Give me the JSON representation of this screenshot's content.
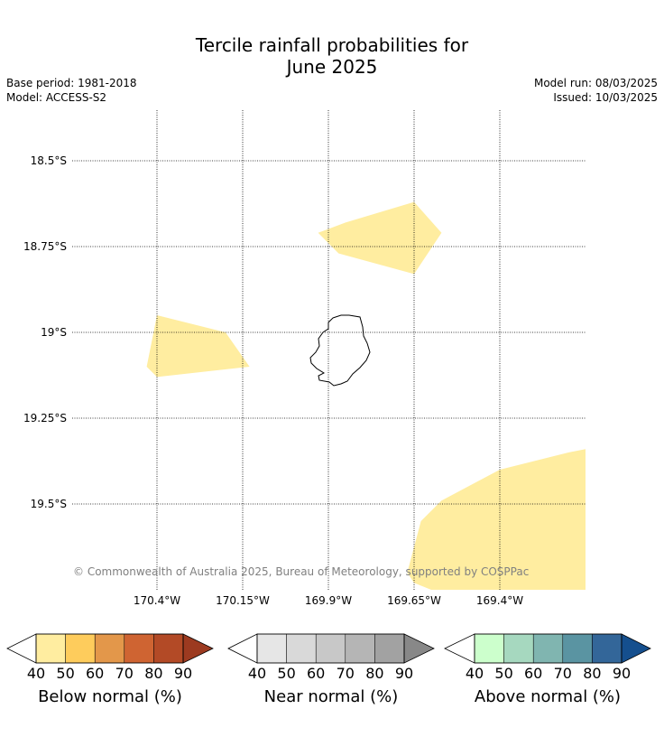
{
  "title_line1": "Tercile rainfall probabilities for",
  "title_line2": "June 2025",
  "base_period": "Base period: 1981-2018",
  "model": "Model: ACCESS-S2",
  "model_run": "Model run: 08/03/2025",
  "issued": "Issued: 10/03/2025",
  "copyright": "© Commonwealth of Australia 2025, Bureau of Meteorology, supported by COSPPac",
  "lat_labels": [
    "18.5°S",
    "18.75°S",
    "19°S",
    "19.25°S",
    "19.5°S"
  ],
  "lon_labels": [
    "170.4°W",
    "170.15°W",
    "169.9°W",
    "169.65°W",
    "169.4°W"
  ],
  "colorbars": [
    {
      "title": "Below normal (%)",
      "ticks": [
        "40",
        "50",
        "60",
        "70",
        "80",
        "90"
      ],
      "colors": [
        "#ffffff",
        "#ffeda0",
        "#fecc5c",
        "#e3974a",
        "#cf6432",
        "#b34a26",
        "#9c3a20"
      ]
    },
    {
      "title": "Near normal (%)",
      "ticks": [
        "40",
        "50",
        "60",
        "70",
        "80",
        "90"
      ],
      "colors": [
        "#ffffff",
        "#e6e6e6",
        "#d9d9d9",
        "#c8c8c8",
        "#b5b5b5",
        "#a2a2a2",
        "#888888"
      ]
    },
    {
      "title": "Above normal (%)",
      "ticks": [
        "40",
        "50",
        "60",
        "70",
        "80",
        "90"
      ],
      "colors": [
        "#ffffff",
        "#ccffcc",
        "#a6d8bf",
        "#80b5b0",
        "#5a94a2",
        "#336699",
        "#154f8e"
      ]
    }
  ],
  "fill_color": "#ffeda0",
  "map_data": {
    "lat_ticks": [
      -18.5,
      -18.75,
      -19.0,
      -19.25,
      -19.5
    ],
    "lon_ticks": [
      -170.4,
      -170.15,
      -169.9,
      -169.65,
      -169.4
    ],
    "below_normal_regions": [
      {
        "category": "40-50",
        "polygon": [
          [
            -169.93,
            -18.71
          ],
          [
            -169.85,
            -18.68
          ],
          [
            -169.65,
            -18.62
          ],
          [
            -169.57,
            -18.71
          ],
          [
            -169.65,
            -18.83
          ],
          [
            -169.87,
            -18.77
          ]
        ]
      },
      {
        "category": "40-50",
        "polygon": [
          [
            -170.4,
            -18.95
          ],
          [
            -170.2,
            -19.0
          ],
          [
            -170.13,
            -19.1
          ],
          [
            -170.4,
            -19.13
          ],
          [
            -170.43,
            -19.1
          ]
        ]
      },
      {
        "category": "40-50",
        "polygon": [
          [
            -169.63,
            -19.55
          ],
          [
            -169.57,
            -19.49
          ],
          [
            -169.4,
            -19.4
          ],
          [
            -169.2,
            -19.35
          ],
          [
            -169.15,
            -19.34
          ],
          [
            -169.15,
            -19.75
          ],
          [
            -169.6,
            -19.75
          ],
          [
            -169.65,
            -19.73
          ],
          [
            -169.67,
            -19.7
          ]
        ]
      }
    ]
  }
}
